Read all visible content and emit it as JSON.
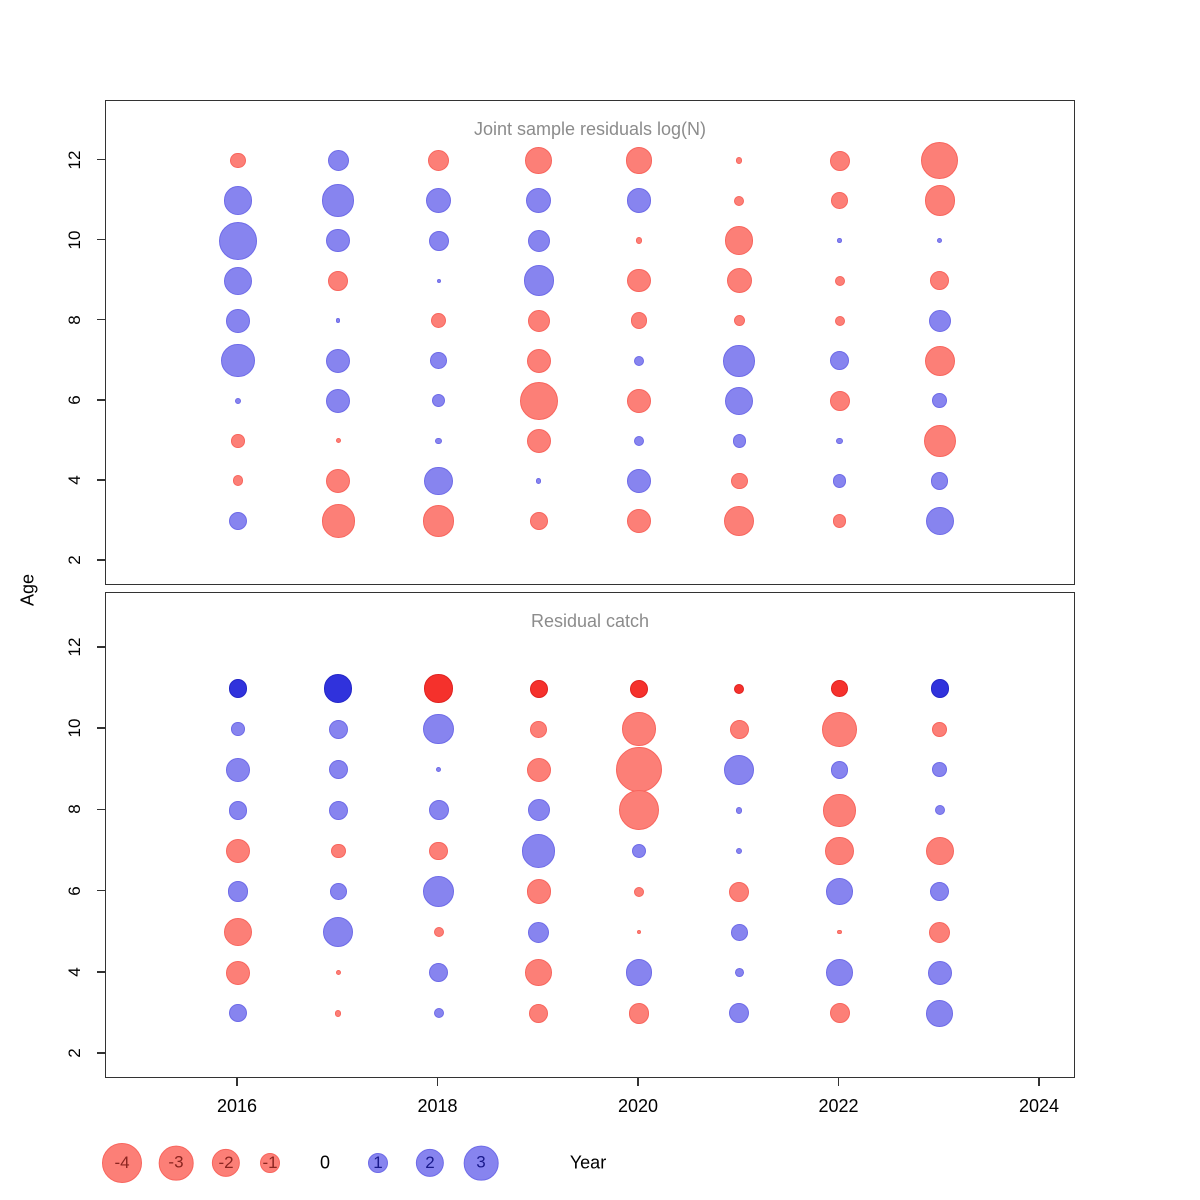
{
  "figure_title": "",
  "axes": {
    "ylabel": "Age",
    "xlabel": "Year",
    "x_ticks": [
      2016,
      2018,
      2020,
      2022,
      2024
    ],
    "y_ticks": [
      2,
      4,
      6,
      8,
      10,
      12
    ],
    "x_range": [
      2014.6,
      2024.4
    ],
    "y_range": [
      1.5,
      12.9
    ]
  },
  "colors": {
    "negative": "#FC7F77",
    "negative_border": "#F8655D",
    "positive": "#8784EF",
    "positive_border": "#6E6BE8",
    "negative_strong": "#F5312C",
    "negative_strong_border": "#E02220",
    "positive_strong": "#3032DC",
    "positive_strong_border": "#2326C8",
    "title": "#8C8C8C",
    "axis": "#333333",
    "legend_negative_text": "#8B2520",
    "legend_positive_text": "#1A1A8C"
  },
  "legend": {
    "values": [
      -4,
      -3,
      -2,
      -1,
      0,
      1,
      2,
      3
    ],
    "label": "Year"
  },
  "chart_data": [
    {
      "type": "scatter",
      "subtype": "bubble-residuals",
      "title": "Joint sample residuals log(N)",
      "xlabel": "Year",
      "ylabel": "Age",
      "size_rule": "radius_px = 10 * sqrt(abs(value)); red = negative, blue = positive",
      "points": [
        {
          "year": 2016,
          "age": 12,
          "value": -0.6
        },
        {
          "year": 2016,
          "age": 11,
          "value": 2.0
        },
        {
          "year": 2016,
          "age": 10,
          "value": 3.6
        },
        {
          "year": 2016,
          "age": 9,
          "value": 2.0
        },
        {
          "year": 2016,
          "age": 8,
          "value": 1.4
        },
        {
          "year": 2016,
          "age": 7,
          "value": 2.8
        },
        {
          "year": 2016,
          "age": 6,
          "value": 0.1
        },
        {
          "year": 2016,
          "age": 5,
          "value": -0.45
        },
        {
          "year": 2016,
          "age": 4,
          "value": -0.3
        },
        {
          "year": 2016,
          "age": 3,
          "value": 0.85
        },
        {
          "year": 2017,
          "age": 12,
          "value": 1.1
        },
        {
          "year": 2017,
          "age": 11,
          "value": 2.6
        },
        {
          "year": 2017,
          "age": 10,
          "value": 1.4
        },
        {
          "year": 2017,
          "age": 9,
          "value": -1.0
        },
        {
          "year": 2017,
          "age": 8,
          "value": 0.05
        },
        {
          "year": 2017,
          "age": 7,
          "value": 1.5
        },
        {
          "year": 2017,
          "age": 6,
          "value": 1.5
        },
        {
          "year": 2017,
          "age": 5,
          "value": -0.07
        },
        {
          "year": 2017,
          "age": 4,
          "value": -1.5
        },
        {
          "year": 2017,
          "age": 3,
          "value": -2.8
        },
        {
          "year": 2018,
          "age": 12,
          "value": -1.1
        },
        {
          "year": 2018,
          "age": 11,
          "value": 1.6
        },
        {
          "year": 2018,
          "age": 10,
          "value": 1.0
        },
        {
          "year": 2018,
          "age": 9,
          "value": 0.04
        },
        {
          "year": 2018,
          "age": 8,
          "value": -0.6
        },
        {
          "year": 2018,
          "age": 7,
          "value": 0.7
        },
        {
          "year": 2018,
          "age": 6,
          "value": 0.45
        },
        {
          "year": 2018,
          "age": 5,
          "value": 0.1
        },
        {
          "year": 2018,
          "age": 4,
          "value": 2.0
        },
        {
          "year": 2018,
          "age": 3,
          "value": -2.5
        },
        {
          "year": 2019,
          "age": 12,
          "value": -1.8
        },
        {
          "year": 2019,
          "age": 11,
          "value": 1.6
        },
        {
          "year": 2019,
          "age": 10,
          "value": 1.2
        },
        {
          "year": 2019,
          "age": 9,
          "value": 2.3
        },
        {
          "year": 2019,
          "age": 8,
          "value": -1.2
        },
        {
          "year": 2019,
          "age": 7,
          "value": -1.5
        },
        {
          "year": 2019,
          "age": 6,
          "value": -3.6
        },
        {
          "year": 2019,
          "age": 5,
          "value": -1.5
        },
        {
          "year": 2019,
          "age": 4,
          "value": 0.07
        },
        {
          "year": 2019,
          "age": 3,
          "value": -0.8
        },
        {
          "year": 2020,
          "age": 12,
          "value": -1.8
        },
        {
          "year": 2020,
          "age": 11,
          "value": 1.5
        },
        {
          "year": 2020,
          "age": 10,
          "value": -0.1
        },
        {
          "year": 2020,
          "age": 9,
          "value": -1.4
        },
        {
          "year": 2020,
          "age": 8,
          "value": -0.7
        },
        {
          "year": 2020,
          "age": 7,
          "value": 0.25
        },
        {
          "year": 2020,
          "age": 6,
          "value": -1.4
        },
        {
          "year": 2020,
          "age": 5,
          "value": 0.25
        },
        {
          "year": 2020,
          "age": 4,
          "value": 1.4
        },
        {
          "year": 2020,
          "age": 3,
          "value": -1.4
        },
        {
          "year": 2021,
          "age": 12,
          "value": -0.1
        },
        {
          "year": 2021,
          "age": 11,
          "value": -0.25
        },
        {
          "year": 2021,
          "age": 10,
          "value": -2.0
        },
        {
          "year": 2021,
          "age": 9,
          "value": -1.6
        },
        {
          "year": 2021,
          "age": 8,
          "value": -0.3
        },
        {
          "year": 2021,
          "age": 7,
          "value": 2.5
        },
        {
          "year": 2021,
          "age": 6,
          "value": 2.0
        },
        {
          "year": 2021,
          "age": 5,
          "value": 0.45
        },
        {
          "year": 2021,
          "age": 4,
          "value": -0.7
        },
        {
          "year": 2021,
          "age": 3,
          "value": -2.3
        },
        {
          "year": 2022,
          "age": 12,
          "value": -1.0
        },
        {
          "year": 2022,
          "age": 11,
          "value": -0.7
        },
        {
          "year": 2022,
          "age": 10,
          "value": 0.05
        },
        {
          "year": 2022,
          "age": 9,
          "value": -0.25
        },
        {
          "year": 2022,
          "age": 8,
          "value": -0.25
        },
        {
          "year": 2022,
          "age": 7,
          "value": 0.9
        },
        {
          "year": 2022,
          "age": 6,
          "value": -1.0
        },
        {
          "year": 2022,
          "age": 5,
          "value": 0.1
        },
        {
          "year": 2022,
          "age": 4,
          "value": 0.45
        },
        {
          "year": 2022,
          "age": 3,
          "value": -0.45
        },
        {
          "year": 2023,
          "age": 12,
          "value": -3.5
        },
        {
          "year": 2023,
          "age": 11,
          "value": -2.3
        },
        {
          "year": 2023,
          "age": 10,
          "value": 0.07
        },
        {
          "year": 2023,
          "age": 9,
          "value": -0.9
        },
        {
          "year": 2023,
          "age": 8,
          "value": 1.2
        },
        {
          "year": 2023,
          "age": 7,
          "value": -2.3
        },
        {
          "year": 2023,
          "age": 6,
          "value": 0.55
        },
        {
          "year": 2023,
          "age": 5,
          "value": -2.6
        },
        {
          "year": 2023,
          "age": 4,
          "value": 0.75
        },
        {
          "year": 2023,
          "age": 3,
          "value": 2.0
        }
      ]
    },
    {
      "type": "scatter",
      "subtype": "bubble-residuals",
      "title": "Residual catch",
      "xlabel": "Year",
      "ylabel": "Age",
      "size_rule": "radius_px = 10 * sqrt(abs(value)); red = negative, blue = positive; strong = saturated color",
      "points": [
        {
          "year": 2016,
          "age": 11,
          "value": 0.85,
          "strong": true
        },
        {
          "year": 2016,
          "age": 10,
          "value": 0.45
        },
        {
          "year": 2016,
          "age": 9,
          "value": 1.4
        },
        {
          "year": 2016,
          "age": 8,
          "value": 0.9
        },
        {
          "year": 2016,
          "age": 7,
          "value": -1.5
        },
        {
          "year": 2016,
          "age": 6,
          "value": 1.1
        },
        {
          "year": 2016,
          "age": 5,
          "value": -2.0
        },
        {
          "year": 2016,
          "age": 4,
          "value": -1.5
        },
        {
          "year": 2016,
          "age": 3,
          "value": 0.8
        },
        {
          "year": 2017,
          "age": 11,
          "value": 2.0,
          "strong": true
        },
        {
          "year": 2017,
          "age": 10,
          "value": 0.9
        },
        {
          "year": 2017,
          "age": 9,
          "value": 0.9
        },
        {
          "year": 2017,
          "age": 8,
          "value": 0.9
        },
        {
          "year": 2017,
          "age": 7,
          "value": -0.55
        },
        {
          "year": 2017,
          "age": 6,
          "value": 0.7
        },
        {
          "year": 2017,
          "age": 5,
          "value": 2.3
        },
        {
          "year": 2017,
          "age": 4,
          "value": -0.07
        },
        {
          "year": 2017,
          "age": 3,
          "value": -0.1
        },
        {
          "year": 2018,
          "age": 11,
          "value": -2.0,
          "strong": true
        },
        {
          "year": 2018,
          "age": 10,
          "value": 2.3
        },
        {
          "year": 2018,
          "age": 9,
          "value": 0.07
        },
        {
          "year": 2018,
          "age": 8,
          "value": 1.0
        },
        {
          "year": 2018,
          "age": 7,
          "value": -0.9
        },
        {
          "year": 2018,
          "age": 6,
          "value": 2.5
        },
        {
          "year": 2018,
          "age": 5,
          "value": -0.25
        },
        {
          "year": 2018,
          "age": 4,
          "value": 0.9
        },
        {
          "year": 2018,
          "age": 3,
          "value": 0.25
        },
        {
          "year": 2019,
          "age": 11,
          "value": -0.8,
          "strong": true
        },
        {
          "year": 2019,
          "age": 10,
          "value": -0.7
        },
        {
          "year": 2019,
          "age": 9,
          "value": -1.5
        },
        {
          "year": 2019,
          "age": 8,
          "value": 1.2
        },
        {
          "year": 2019,
          "age": 7,
          "value": 2.8
        },
        {
          "year": 2019,
          "age": 6,
          "value": -1.5
        },
        {
          "year": 2019,
          "age": 5,
          "value": 1.1
        },
        {
          "year": 2019,
          "age": 4,
          "value": -1.8
        },
        {
          "year": 2019,
          "age": 3,
          "value": -0.9
        },
        {
          "year": 2020,
          "age": 11,
          "value": -0.8,
          "strong": true
        },
        {
          "year": 2020,
          "age": 10,
          "value": -2.8
        },
        {
          "year": 2020,
          "age": 9,
          "value": -5.1
        },
        {
          "year": 2020,
          "age": 8,
          "value": -4.0
        },
        {
          "year": 2020,
          "age": 7,
          "value": 0.55
        },
        {
          "year": 2020,
          "age": 6,
          "value": -0.25
        },
        {
          "year": 2020,
          "age": 5,
          "value": -0.05
        },
        {
          "year": 2020,
          "age": 4,
          "value": 1.8
        },
        {
          "year": 2020,
          "age": 3,
          "value": -1.1
        },
        {
          "year": 2021,
          "age": 11,
          "value": -0.25,
          "strong": true
        },
        {
          "year": 2021,
          "age": 10,
          "value": -0.9
        },
        {
          "year": 2021,
          "age": 9,
          "value": 2.3
        },
        {
          "year": 2021,
          "age": 8,
          "value": 0.1
        },
        {
          "year": 2021,
          "age": 7,
          "value": 0.1
        },
        {
          "year": 2021,
          "age": 6,
          "value": -1.0
        },
        {
          "year": 2021,
          "age": 5,
          "value": 0.7
        },
        {
          "year": 2021,
          "age": 4,
          "value": 0.2
        },
        {
          "year": 2021,
          "age": 3,
          "value": 1.0
        },
        {
          "year": 2022,
          "age": 11,
          "value": -0.7,
          "strong": true
        },
        {
          "year": 2022,
          "age": 10,
          "value": -3.0
        },
        {
          "year": 2022,
          "age": 9,
          "value": 0.8
        },
        {
          "year": 2022,
          "age": 8,
          "value": -2.6
        },
        {
          "year": 2022,
          "age": 7,
          "value": -2.0
        },
        {
          "year": 2022,
          "age": 6,
          "value": 1.8
        },
        {
          "year": 2022,
          "age": 5,
          "value": -0.05
        },
        {
          "year": 2022,
          "age": 4,
          "value": 1.8
        },
        {
          "year": 2022,
          "age": 3,
          "value": -1.0
        },
        {
          "year": 2023,
          "age": 11,
          "value": 0.85,
          "strong": true
        },
        {
          "year": 2023,
          "age": 10,
          "value": -0.55
        },
        {
          "year": 2023,
          "age": 9,
          "value": 0.55
        },
        {
          "year": 2023,
          "age": 8,
          "value": 0.25
        },
        {
          "year": 2023,
          "age": 7,
          "value": -2.0
        },
        {
          "year": 2023,
          "age": 6,
          "value": 0.9
        },
        {
          "year": 2023,
          "age": 5,
          "value": -1.1
        },
        {
          "year": 2023,
          "age": 4,
          "value": 1.5
        },
        {
          "year": 2023,
          "age": 3,
          "value": 1.8
        }
      ]
    }
  ]
}
